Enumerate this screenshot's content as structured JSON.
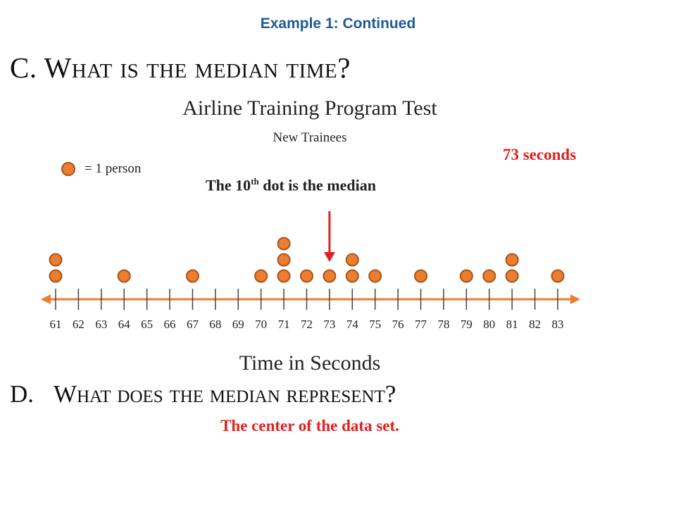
{
  "header": "Example 1: Continued",
  "question_c": {
    "letter": "C.",
    "text": "What is the median time?"
  },
  "answer_c": "73 seconds",
  "median_note": {
    "before": "The 10",
    "sup": "th",
    "after": " dot is the median"
  },
  "legend": {
    "text": "= 1 person"
  },
  "question_d": {
    "letter": "D.",
    "text": "What does the median represent?"
  },
  "answer_d": "The center of the data set.",
  "colors": {
    "dot_fill": "#ed7d31",
    "dot_stroke": "#a85418",
    "axis": "#ed7d31",
    "arrow": "#e02020"
  },
  "chart_data": {
    "type": "scatter",
    "subtype": "dot_plot",
    "title": "Airline Training Program Test",
    "subtitle": "New Trainees",
    "xlabel": "Time in Seconds",
    "ylabel": "",
    "xlim": [
      61,
      83
    ],
    "ticks": [
      61,
      62,
      63,
      64,
      65,
      66,
      67,
      68,
      69,
      70,
      71,
      72,
      73,
      74,
      75,
      76,
      77,
      78,
      79,
      80,
      81,
      82,
      83
    ],
    "points": [
      {
        "x": 61,
        "count": 2
      },
      {
        "x": 64,
        "count": 1
      },
      {
        "x": 67,
        "count": 1
      },
      {
        "x": 70,
        "count": 1
      },
      {
        "x": 71,
        "count": 3
      },
      {
        "x": 72,
        "count": 1
      },
      {
        "x": 73,
        "count": 1
      },
      {
        "x": 74,
        "count": 2
      },
      {
        "x": 75,
        "count": 1
      },
      {
        "x": 77,
        "count": 1
      },
      {
        "x": 79,
        "count": 1
      },
      {
        "x": 80,
        "count": 1
      },
      {
        "x": 81,
        "count": 2
      },
      {
        "x": 83,
        "count": 1
      }
    ],
    "median": 73,
    "grid": false
  }
}
